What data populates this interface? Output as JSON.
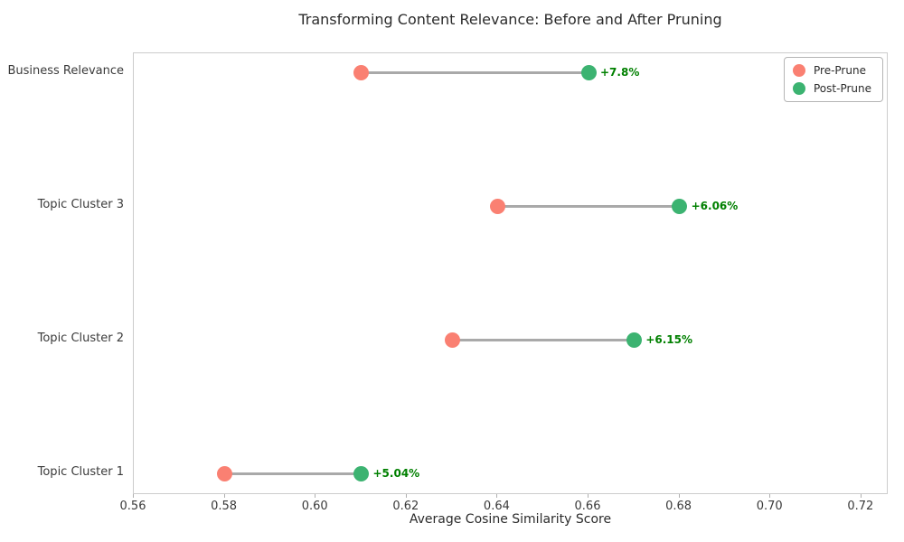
{
  "chart_data": {
    "type": "dumbbell",
    "title": "Transforming Content Relevance: Before and After Pruning",
    "xlabel": "Average Cosine Similarity Score",
    "categories": [
      "Business Relevance",
      "Topic Cluster 3",
      "Topic Cluster 2",
      "Topic Cluster 1"
    ],
    "series": [
      {
        "name": "Pre-Prune",
        "color": "#FA8072",
        "values": [
          0.61,
          0.64,
          0.63,
          0.58
        ]
      },
      {
        "name": "Post-Prune",
        "color": "#3CB371",
        "values": [
          0.66,
          0.68,
          0.67,
          0.61
        ]
      }
    ],
    "annotations": [
      "+7.8%",
      "+6.06%",
      "+6.15%",
      "+5.04%"
    ],
    "annotation_color": "#008000",
    "connector_color": "#a9a9a9",
    "xlim": [
      0.56,
      0.726
    ],
    "xticks": [
      "0.56",
      "0.58",
      "0.60",
      "0.62",
      "0.64",
      "0.66",
      "0.68",
      "0.70",
      "0.72"
    ],
    "legend": {
      "position": "upper right"
    },
    "grid": false,
    "spine_color": "#cccccc"
  }
}
